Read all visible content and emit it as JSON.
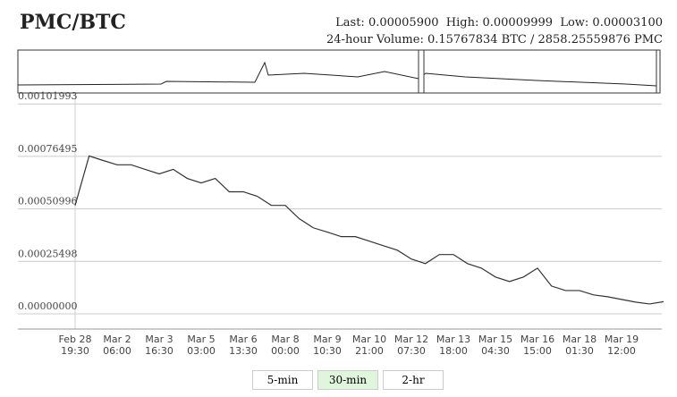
{
  "header": {
    "title": "PMC/BTC",
    "stats": "Last: 0.00005900  High: 0.00009999  Low: 0.00003100",
    "volume": "24-hour Volume: 0.15767834 BTC / 2858.25559876 PMC"
  },
  "chart_data": {
    "type": "line",
    "categories": [
      "Feb 28 19:30",
      null,
      null,
      "Mar 2 06:00",
      null,
      null,
      "Mar 3 16:30",
      null,
      null,
      "Mar 5 03:00",
      null,
      null,
      "Mar 6 13:30",
      null,
      null,
      "Mar 8 00:00",
      null,
      null,
      "Mar 9 10:30",
      null,
      null,
      "Mar 10 21:00",
      null,
      null,
      "Mar 12 07:30",
      null,
      null,
      "Mar 13 18:00",
      null,
      null,
      "Mar 15 04:30",
      null,
      null,
      "Mar 16 15:00",
      null,
      null,
      "Mar 18 01:30",
      null,
      null,
      "Mar 19 12:00",
      null,
      null,
      null
    ],
    "series": [
      {
        "color": "#333333",
        "values": [
          0.000527,
          0.000767,
          0.000745,
          0.000724,
          0.000724,
          0.000702,
          0.00068,
          0.000702,
          0.000658,
          0.000636,
          0.000658,
          0.000593,
          0.000593,
          0.000571,
          0.000527,
          0.000527,
          0.000462,
          0.000418,
          0.000397,
          0.000375,
          0.000375,
          0.000353,
          0.000331,
          0.000309,
          0.000266,
          0.000244,
          0.000288,
          0.000288,
          0.000244,
          0.000222,
          0.000179,
          0.000157,
          0.000179,
          0.000222,
          0.000135,
          0.000113,
          0.000113,
          9.2e-05,
          8.3e-05,
          7e-05,
          5.7e-05,
          4.8e-05,
          5.9e-05
        ]
      }
    ],
    "ylim": [
      -7.4e-05,
      0.00106
    ],
    "yticks": [
      {
        "value": 0,
        "label": "0.00000000"
      },
      0.00025498,
      0.00050996,
      0.00076495,
      0.00101993
    ],
    "grid": true
  },
  "buttons": [
    "5-min",
    "30-min",
    "2-hr"
  ],
  "active_button": 1
}
